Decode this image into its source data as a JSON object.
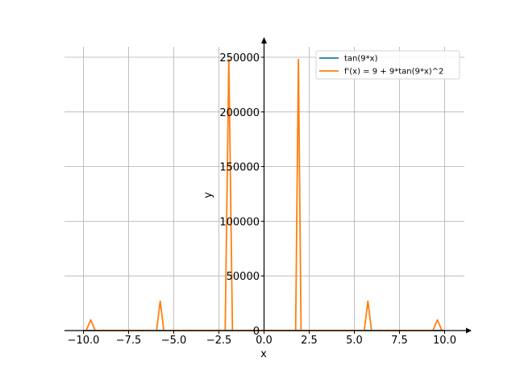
{
  "chart_data": {
    "type": "line",
    "title": "",
    "xlabel": "x",
    "ylabel": "y",
    "xlim": [
      -11,
      11
    ],
    "ylim": [
      0,
      255000
    ],
    "grid": true,
    "legend_position": "top-right",
    "xticks": [
      -10,
      -7.5,
      -5,
      -2.5,
      0,
      2.5,
      5,
      7.5,
      10
    ],
    "xtick_labels": [
      "−10.0",
      "−7.5",
      "−5.0",
      "−2.5",
      "0.0",
      "2.5",
      "5.0",
      "7.5",
      "10.0"
    ],
    "yticks": [
      0,
      50000,
      100000,
      150000,
      200000,
      250000
    ],
    "ytick_labels": [
      "0",
      "50000",
      "100000",
      "150000",
      "200000",
      "250000"
    ],
    "series": [
      {
        "name": "tan(9*x)",
        "color": "#1f77b4",
        "x": [
          -10,
          -9.6,
          -9.2,
          -8.8,
          -8.4,
          -8.0,
          -7.6,
          -7.2,
          -6.8,
          -6.4,
          -6.0,
          -5.6,
          -5.2,
          -4.8,
          -4.4,
          -4.0,
          -3.6,
          -3.2,
          -2.8,
          -2.4,
          -2.0,
          -1.6,
          -1.2,
          -0.8,
          -0.4,
          0,
          0.4,
          0.8,
          1.2,
          1.6,
          2.0,
          2.4,
          2.8,
          3.2,
          3.6,
          4.0,
          4.4,
          4.8,
          5.2,
          5.6,
          6.0,
          6.4,
          6.8,
          7.2,
          7.6,
          8.0,
          8.4,
          8.8,
          9.2,
          9.6,
          10
        ],
        "y": [
          0,
          2,
          -1,
          3,
          0,
          1,
          -2,
          1,
          0,
          2,
          -1,
          1,
          0,
          3,
          -1,
          0,
          1,
          2,
          -1,
          0,
          4,
          -3,
          1,
          0,
          2,
          0,
          -2,
          0,
          -1,
          3,
          -4,
          0,
          1,
          -2,
          -1,
          0,
          1,
          -3,
          0,
          -1,
          1,
          -2,
          0,
          -1,
          2,
          -1,
          0,
          -3,
          1,
          -2,
          0
        ]
      },
      {
        "name": "f'(x) = 9 + 9*tan(9*x)^2",
        "color": "#ff7f0e",
        "x": [
          -10.0,
          -9.85,
          -9.6,
          -9.35,
          -9.1,
          -6.1,
          -5.95,
          -5.75,
          -5.55,
          -5.4,
          -2.3,
          -2.15,
          -1.95,
          -1.75,
          -1.6,
          -1.4,
          1.6,
          1.75,
          1.9,
          2.05,
          5.4,
          5.55,
          5.75,
          5.95,
          6.1,
          9.35,
          9.6,
          9.85,
          10.0
        ],
        "y": [
          0,
          0,
          9800,
          0,
          0,
          0,
          0,
          27000,
          0,
          0,
          0,
          0,
          248000,
          0,
          0,
          0,
          0,
          0,
          248000,
          0,
          0,
          0,
          27000,
          0,
          0,
          0,
          9800,
          0,
          0
        ]
      }
    ]
  }
}
